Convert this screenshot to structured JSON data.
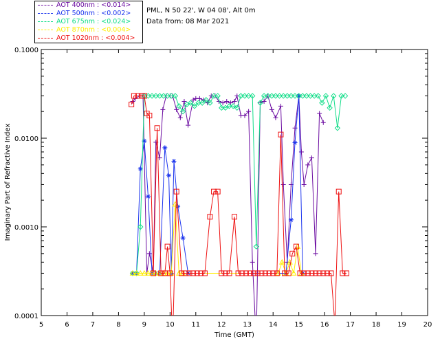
{
  "header": {
    "site_line": "PML, N 50 22', W 04 08', Alt 0m",
    "date_line": "Data from: 08 Mar 2021"
  },
  "chart_data": {
    "type": "line",
    "xlabel": "Time (GMT)",
    "ylabel": "Imaginary Part of Refractive Index",
    "xlim": [
      5,
      20
    ],
    "ylim": [
      0.0001,
      0.1
    ],
    "y_scale": "log",
    "x_ticks": [
      5,
      6,
      7,
      8,
      9,
      10,
      11,
      12,
      13,
      14,
      15,
      16,
      17,
      18,
      19,
      20
    ],
    "y_ticks": [
      {
        "value": 0.0001,
        "label": "0.0001"
      },
      {
        "value": 0.001,
        "label": "0.0010"
      },
      {
        "value": 0.01,
        "label": "0.0100"
      },
      {
        "value": 0.1,
        "label": "0.1000"
      }
    ],
    "grid": false,
    "legend_position": "top-left",
    "series": [
      {
        "name": "AOT  400nm : <0.014>",
        "color": "#6a0aa0",
        "marker": "plus",
        "points": [
          [
            8.55,
            0.026
          ],
          [
            8.65,
            0.028
          ],
          [
            8.8,
            0.03
          ],
          [
            8.95,
            0.03
          ],
          [
            9.1,
            0.0003
          ],
          [
            9.2,
            0.0005
          ],
          [
            9.35,
            0.0003
          ],
          [
            9.45,
            0.009
          ],
          [
            9.6,
            0.006
          ],
          [
            9.72,
            0.021
          ],
          [
            9.85,
            0.03
          ],
          [
            10.0,
            0.03
          ],
          [
            10.1,
            0.03
          ],
          [
            10.25,
            0.021
          ],
          [
            10.4,
            0.017
          ],
          [
            10.55,
            0.026
          ],
          [
            10.7,
            0.014
          ],
          [
            10.9,
            0.027
          ],
          [
            11.0,
            0.028
          ],
          [
            11.15,
            0.028
          ],
          [
            11.3,
            0.027
          ],
          [
            11.45,
            0.025
          ],
          [
            11.6,
            0.03
          ],
          [
            11.75,
            0.03
          ],
          [
            11.9,
            0.026
          ],
          [
            12.05,
            0.025
          ],
          [
            12.2,
            0.026
          ],
          [
            12.35,
            0.025
          ],
          [
            12.5,
            0.026
          ],
          [
            12.6,
            0.03
          ],
          [
            12.75,
            0.018
          ],
          [
            12.9,
            0.018
          ],
          [
            13.05,
            0.02
          ],
          [
            13.2,
            0.0004
          ],
          [
            13.35,
            5e-05
          ],
          [
            13.5,
            0.025
          ],
          [
            13.65,
            0.026
          ],
          [
            13.8,
            0.03
          ],
          [
            13.95,
            0.021
          ],
          [
            14.1,
            0.017
          ],
          [
            14.3,
            0.023
          ],
          [
            14.4,
            0.003
          ],
          [
            14.55,
            0.0004
          ],
          [
            14.7,
            0.003
          ],
          [
            14.85,
            0.013
          ],
          [
            15.0,
            0.03
          ],
          [
            15.1,
            0.007
          ],
          [
            15.2,
            0.003
          ],
          [
            15.35,
            0.005
          ],
          [
            15.5,
            0.006
          ],
          [
            15.65,
            0.0005
          ],
          [
            15.8,
            0.019
          ],
          [
            15.95,
            0.015
          ]
        ]
      },
      {
        "name": "AOT  500nm : <0.002>",
        "color": "#1a33ee",
        "marker": "asterisk",
        "points": [
          [
            8.55,
            0.0003
          ],
          [
            8.7,
            0.0003
          ],
          [
            8.85,
            0.0045
          ],
          [
            9.0,
            0.0093
          ],
          [
            9.15,
            0.0022
          ],
          [
            9.3,
            0.0003
          ],
          [
            9.45,
            0.0003
          ],
          [
            9.6,
            0.0003
          ],
          [
            9.8,
            0.0078
          ],
          [
            9.95,
            0.0038
          ],
          [
            10.05,
            0.0003
          ],
          [
            10.15,
            0.0055
          ],
          [
            10.3,
            0.0017
          ],
          [
            10.5,
            0.00075
          ],
          [
            10.7,
            0.0003
          ],
          [
            14.5,
            0.0003
          ],
          [
            14.7,
            0.0012
          ],
          [
            14.85,
            0.0089
          ],
          [
            15.0,
            0.03
          ],
          [
            15.15,
            0.0003
          ]
        ]
      },
      {
        "name": "AOT  675nm : <0.024>",
        "color": "#10dd88",
        "marker": "diamond",
        "points": [
          [
            8.55,
            0.0003
          ],
          [
            8.7,
            0.0003
          ],
          [
            8.85,
            0.001
          ],
          [
            9.0,
            0.03
          ],
          [
            9.15,
            0.03
          ],
          [
            9.3,
            0.03
          ],
          [
            9.45,
            0.03
          ],
          [
            9.6,
            0.03
          ],
          [
            9.75,
            0.03
          ],
          [
            9.9,
            0.03
          ],
          [
            10.05,
            0.03
          ],
          [
            10.2,
            0.03
          ],
          [
            10.35,
            0.023
          ],
          [
            10.5,
            0.02
          ],
          [
            10.65,
            0.024
          ],
          [
            10.8,
            0.025
          ],
          [
            10.95,
            0.023
          ],
          [
            11.1,
            0.025
          ],
          [
            11.25,
            0.025
          ],
          [
            11.4,
            0.027
          ],
          [
            11.55,
            0.025
          ],
          [
            11.7,
            0.03
          ],
          [
            11.85,
            0.03
          ],
          [
            12.0,
            0.022
          ],
          [
            12.15,
            0.022
          ],
          [
            12.3,
            0.023
          ],
          [
            12.45,
            0.023
          ],
          [
            12.6,
            0.022
          ],
          [
            12.75,
            0.03
          ],
          [
            12.9,
            0.03
          ],
          [
            13.05,
            0.03
          ],
          [
            13.2,
            0.03
          ],
          [
            13.35,
            0.0006
          ],
          [
            13.5,
            0.025
          ],
          [
            13.65,
            0.03
          ],
          [
            13.8,
            0.03
          ],
          [
            13.95,
            0.03
          ],
          [
            14.1,
            0.03
          ],
          [
            14.25,
            0.03
          ],
          [
            14.4,
            0.03
          ],
          [
            14.55,
            0.03
          ],
          [
            14.7,
            0.03
          ],
          [
            14.85,
            0.03
          ],
          [
            15.0,
            0.03
          ],
          [
            15.15,
            0.03
          ],
          [
            15.3,
            0.03
          ],
          [
            15.45,
            0.03
          ],
          [
            15.6,
            0.03
          ],
          [
            15.75,
            0.03
          ],
          [
            15.9,
            0.025
          ],
          [
            16.05,
            0.03
          ],
          [
            16.2,
            0.022
          ],
          [
            16.35,
            0.03
          ],
          [
            16.5,
            0.013
          ],
          [
            16.65,
            0.03
          ],
          [
            16.8,
            0.03
          ]
        ]
      },
      {
        "name": "AOT  870nm : <0.004>",
        "color": "#ffee00",
        "marker": "triangle",
        "points": [
          [
            8.55,
            0.0003
          ],
          [
            8.7,
            0.0003
          ],
          [
            8.85,
            0.0003
          ],
          [
            9.0,
            0.0003
          ],
          [
            9.15,
            0.0003
          ],
          [
            9.3,
            0.0003
          ],
          [
            9.45,
            0.0003
          ],
          [
            9.6,
            0.0003
          ],
          [
            9.75,
            0.0003
          ],
          [
            9.9,
            0.0003
          ],
          [
            10.05,
            0.0003
          ],
          [
            10.2,
            0.0018
          ],
          [
            10.35,
            0.0003
          ],
          [
            10.5,
            0.0003
          ],
          [
            14.2,
            0.0003
          ],
          [
            14.35,
            0.0004
          ],
          [
            14.5,
            0.0003
          ],
          [
            14.65,
            0.0004
          ],
          [
            14.8,
            0.0003
          ],
          [
            14.95,
            0.0006
          ],
          [
            15.1,
            0.0003
          ]
        ]
      },
      {
        "name": "AOT 1020nm : <0.004>",
        "color": "#ee1010",
        "marker": "square",
        "points": [
          [
            8.5,
            0.024
          ],
          [
            8.6,
            0.03
          ],
          [
            8.75,
            0.03
          ],
          [
            8.9,
            0.03
          ],
          [
            9.0,
            0.03
          ],
          [
            9.1,
            0.019
          ],
          [
            9.2,
            0.018
          ],
          [
            9.35,
            0.0003
          ],
          [
            9.5,
            0.013
          ],
          [
            9.65,
            0.0003
          ],
          [
            9.8,
            0.0003
          ],
          [
            9.9,
            0.0006
          ],
          [
            10.0,
            0.0003
          ],
          [
            10.1,
            5e-05
          ],
          [
            10.25,
            0.0025
          ],
          [
            10.45,
            0.0003
          ],
          [
            10.6,
            0.0003
          ],
          [
            10.75,
            0.0003
          ],
          [
            10.9,
            0.0003
          ],
          [
            11.05,
            0.0003
          ],
          [
            11.2,
            0.0003
          ],
          [
            11.35,
            0.0003
          ],
          [
            11.55,
            0.0013
          ],
          [
            11.7,
            0.0025
          ],
          [
            11.85,
            0.0025
          ],
          [
            12.0,
            0.0003
          ],
          [
            12.15,
            0.0003
          ],
          [
            12.3,
            0.0003
          ],
          [
            12.5,
            0.0013
          ],
          [
            12.65,
            0.0003
          ],
          [
            12.8,
            0.0003
          ],
          [
            12.95,
            0.0003
          ],
          [
            13.1,
            0.0003
          ],
          [
            13.25,
            0.0003
          ],
          [
            13.4,
            0.0003
          ],
          [
            13.55,
            0.0003
          ],
          [
            13.7,
            0.0003
          ],
          [
            13.85,
            0.0003
          ],
          [
            14.0,
            0.0003
          ],
          [
            14.15,
            0.0003
          ],
          [
            14.3,
            0.011
          ],
          [
            14.45,
            0.0003
          ],
          [
            14.6,
            0.0003
          ],
          [
            14.75,
            0.0005
          ],
          [
            14.9,
            0.0006
          ],
          [
            15.05,
            0.0003
          ],
          [
            15.2,
            0.0003
          ],
          [
            15.35,
            0.0003
          ],
          [
            15.5,
            0.0003
          ],
          [
            15.65,
            0.0003
          ],
          [
            15.8,
            0.0003
          ],
          [
            15.95,
            0.0003
          ],
          [
            16.1,
            0.0003
          ],
          [
            16.25,
            0.0003
          ],
          [
            16.4,
            8e-05
          ],
          [
            16.55,
            0.0025
          ],
          [
            16.7,
            0.0003
          ],
          [
            16.85,
            0.0003
          ]
        ]
      }
    ]
  }
}
